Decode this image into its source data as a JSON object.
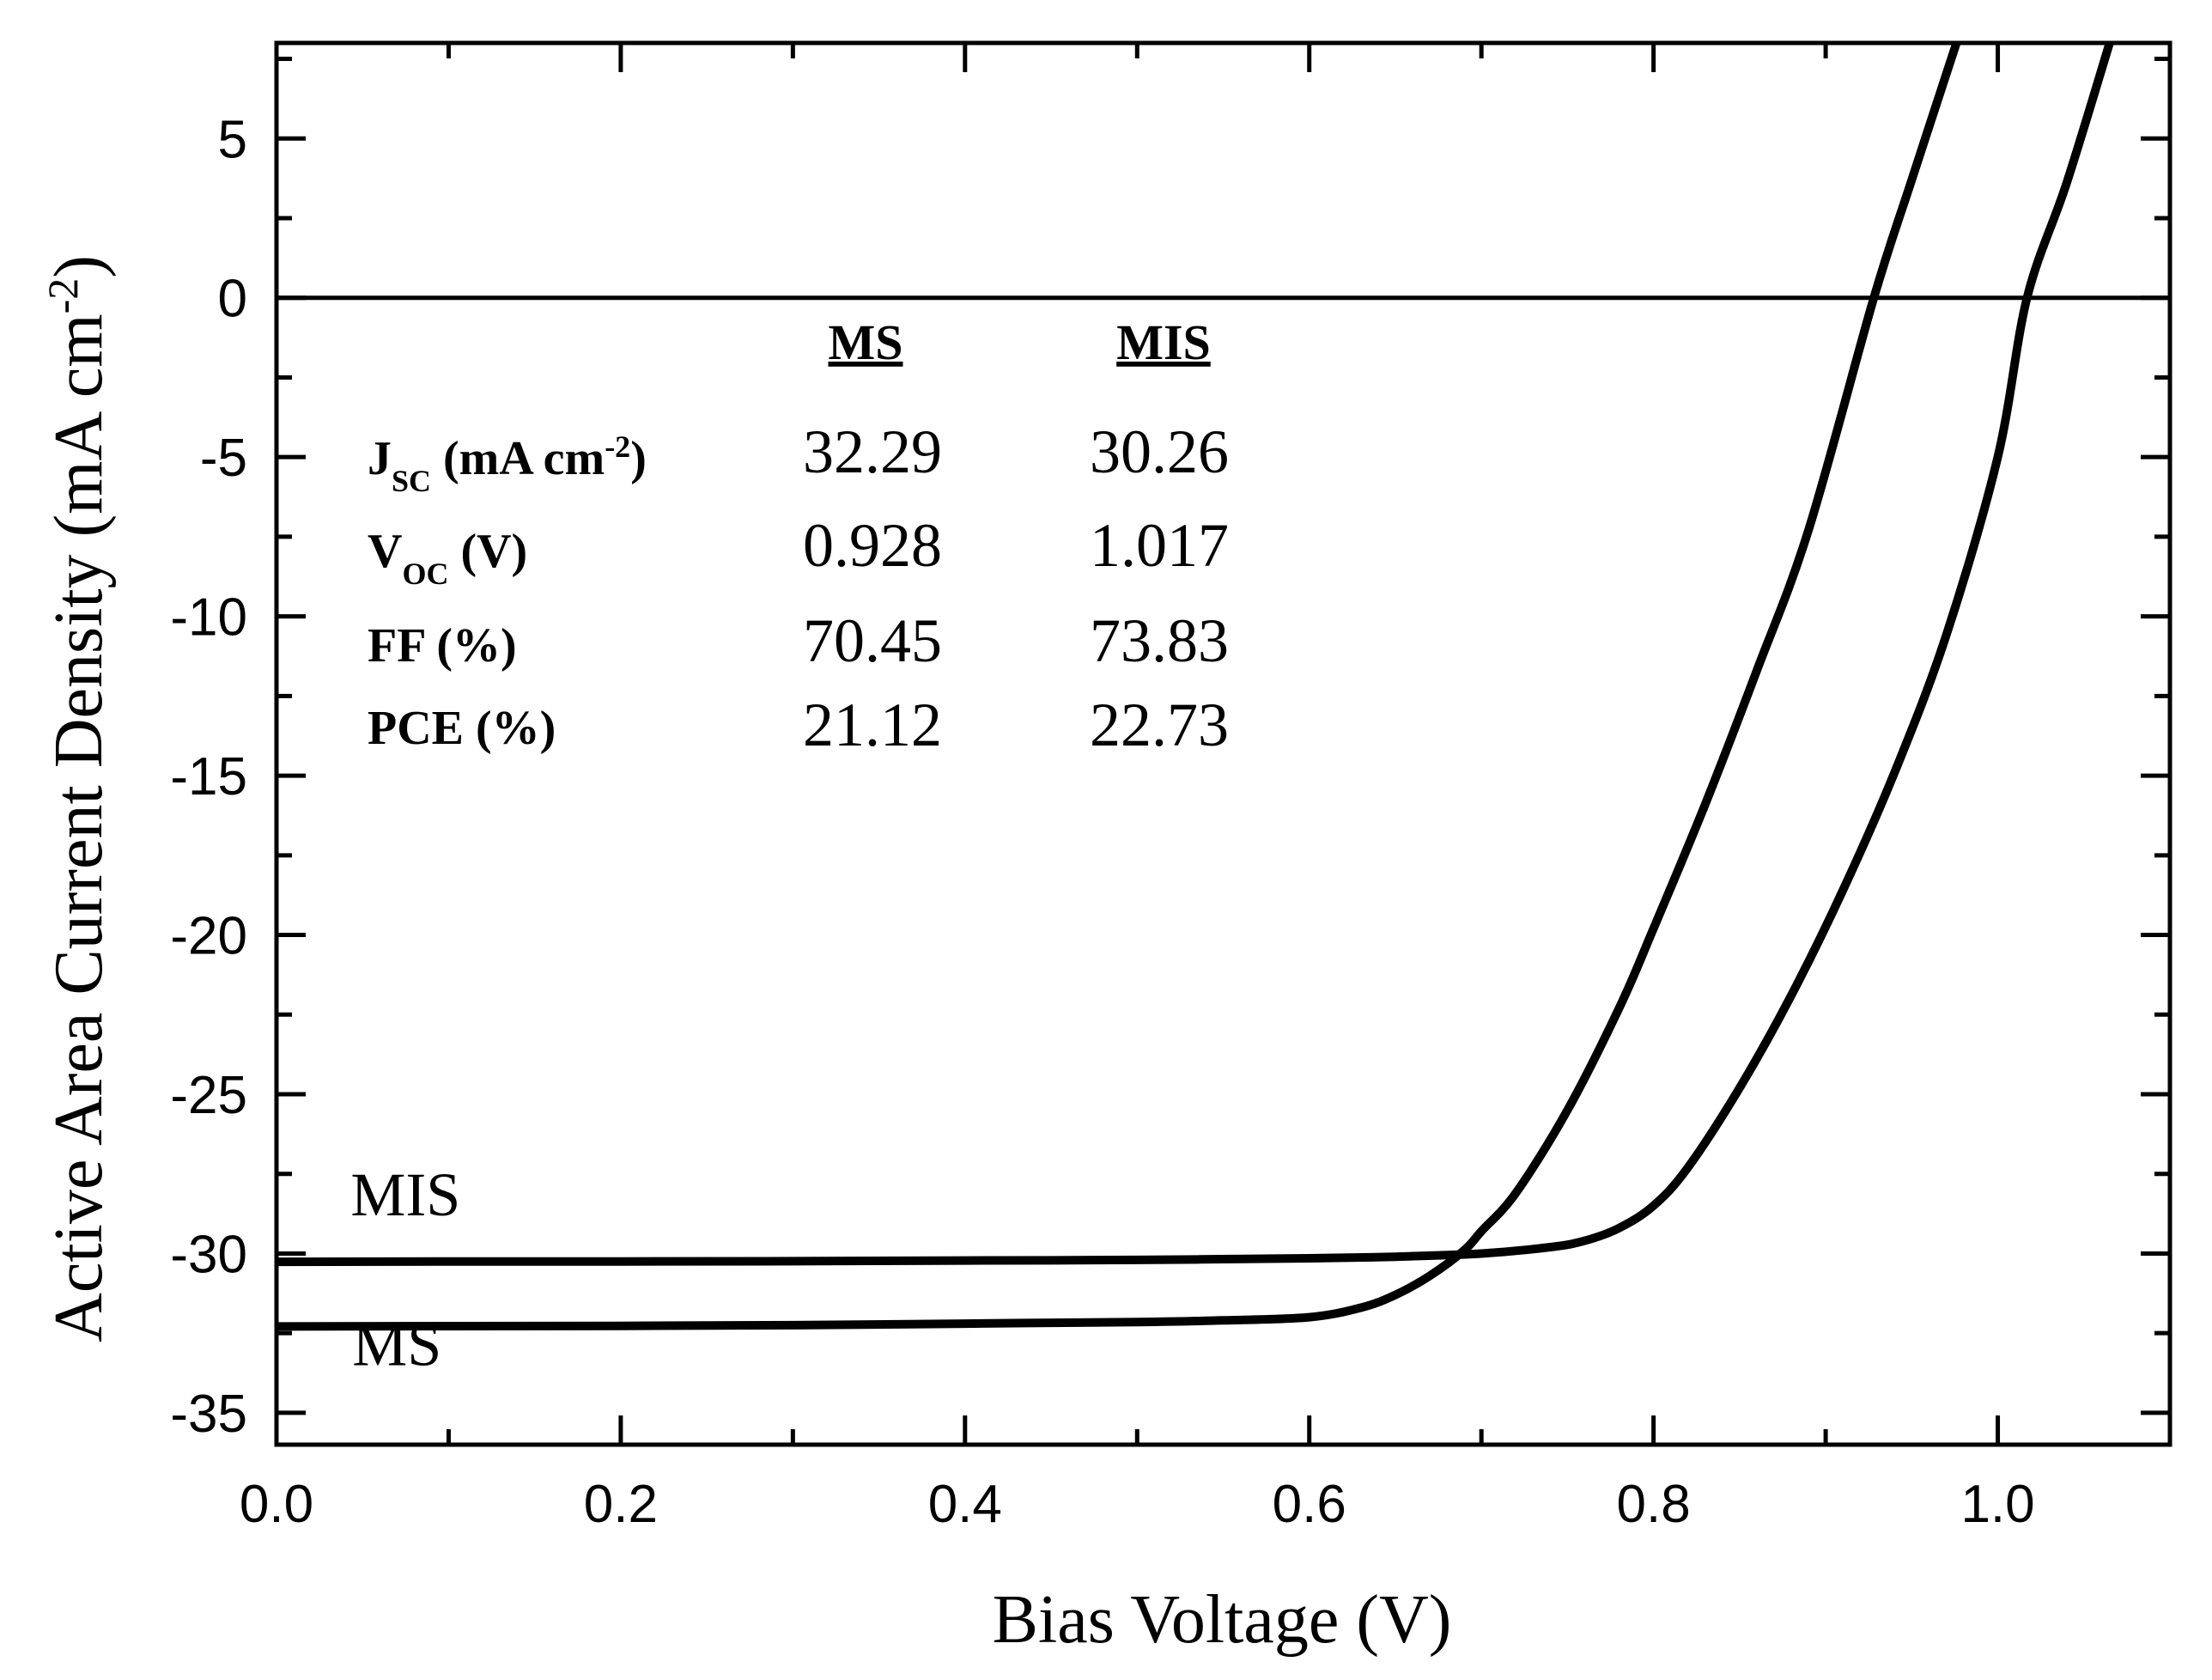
{
  "chart_data": {
    "type": "line",
    "title": "",
    "xlabel": "Bias Voltage (V)",
    "ylabel": "Active Area Current Density (mA cm-2)",
    "ylabel_parts": {
      "main": "Active Area Current Density (mA cm",
      "sup": "-2",
      "close": ")"
    },
    "xlim": [
      0.0,
      1.1
    ],
    "ylim": [
      -36.0,
      8.0
    ],
    "xticks": [
      0.0,
      0.2,
      0.4,
      0.6,
      0.8,
      1.0
    ],
    "xtick_labels": [
      "0.0",
      "0.2",
      "0.4",
      "0.6",
      "0.8",
      "1.0"
    ],
    "xminor": [
      0.1,
      0.3,
      0.5,
      0.7,
      0.9,
      1.1
    ],
    "yticks": [
      5,
      0,
      -5,
      -10,
      -15,
      -20,
      -25,
      -30,
      -35
    ],
    "ytick_labels": [
      "5",
      "0",
      "-5",
      "-10",
      "-15",
      "-20",
      "-25",
      "-30",
      "-35"
    ],
    "yminor": [
      7.5,
      2.5,
      -2.5,
      -7.5,
      -12.5,
      -17.5,
      -22.5,
      -27.5,
      -32.5
    ],
    "zero_line": 0,
    "series": [
      {
        "name": "MS",
        "x": [
          0.0,
          0.1,
          0.2,
          0.3,
          0.4,
          0.5,
          0.55,
          0.6,
          0.63,
          0.65,
          0.67,
          0.69,
          0.7,
          0.72,
          0.75,
          0.78,
          0.8,
          0.83,
          0.86,
          0.89,
          0.928,
          0.95,
          0.976
        ],
        "y": [
          -32.29,
          -32.28,
          -32.27,
          -32.25,
          -32.2,
          -32.15,
          -32.1,
          -32.0,
          -31.7,
          -31.3,
          -30.7,
          -29.9,
          -29.3,
          -28.1,
          -25.5,
          -22.3,
          -19.8,
          -15.9,
          -11.7,
          -7.3,
          0.0,
          3.7,
          8.0
        ]
      },
      {
        "name": "MIS",
        "x": [
          0.0,
          0.1,
          0.2,
          0.3,
          0.4,
          0.5,
          0.6,
          0.65,
          0.7,
          0.74,
          0.76,
          0.78,
          0.8,
          0.82,
          0.85,
          0.88,
          0.91,
          0.94,
          0.97,
          1.0,
          1.017,
          1.04,
          1.065
        ],
        "y": [
          -30.26,
          -30.25,
          -30.25,
          -30.24,
          -30.22,
          -30.2,
          -30.15,
          -30.1,
          -30.0,
          -29.8,
          -29.6,
          -29.2,
          -28.5,
          -27.3,
          -24.8,
          -21.9,
          -18.6,
          -14.9,
          -10.6,
          -5.0,
          0.0,
          3.6,
          8.0
        ]
      }
    ],
    "series_labels": [
      {
        "text": "MIS",
        "x": 0.075,
        "y": -28.8
      },
      {
        "text": "MS",
        "x": 0.07,
        "y": -33.5
      }
    ],
    "table": {
      "columns": [
        "MS",
        "MIS"
      ],
      "rows": [
        {
          "label": "J",
          "sub": "SC",
          "unit_pre": " (mA cm",
          "sup": "-2",
          "unit_post": ")",
          "values": [
            "32.29",
            "30.26"
          ]
        },
        {
          "label": "V",
          "sub": "OC",
          "unit_pre": " (V)",
          "sup": "",
          "unit_post": "",
          "values": [
            "0.928",
            "1.017"
          ]
        },
        {
          "label": "FF (%)",
          "sub": "",
          "unit_pre": "",
          "sup": "",
          "unit_post": "",
          "values": [
            "70.45",
            "73.83"
          ]
        },
        {
          "label": "PCE (%)",
          "sub": "",
          "unit_pre": "",
          "sup": "",
          "unit_post": "",
          "values": [
            "21.12",
            "22.73"
          ]
        }
      ]
    }
  }
}
